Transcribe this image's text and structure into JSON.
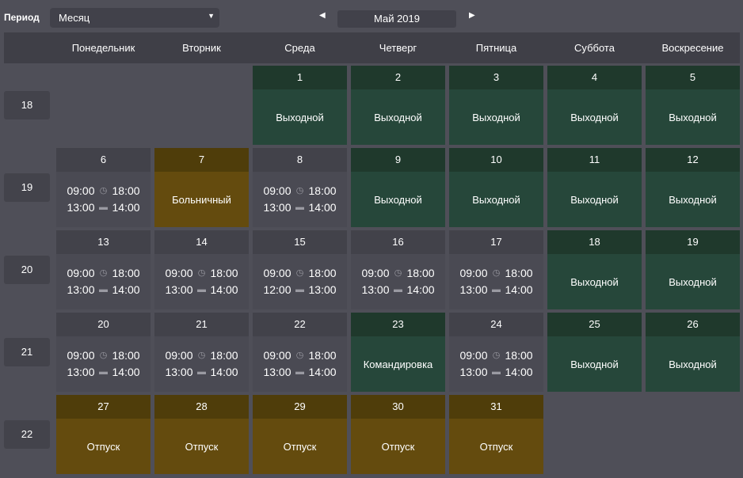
{
  "toolbar": {
    "period_label": "Период",
    "period_value": "Месяц",
    "prev_icon": "triangle-left",
    "next_icon": "triangle-right",
    "month": "Май 2019"
  },
  "weekdays": [
    "Понедельник",
    "Вторник",
    "Среда",
    "Четверг",
    "Пятница",
    "Суббота",
    "Воскресение"
  ],
  "colors": {
    "background": "#4f4f58",
    "workday": "#4a4a53",
    "day_off": "#26473a",
    "absence": "#644b0e"
  },
  "weeks": [
    {
      "number": "18",
      "days": [
        null,
        null,
        {
          "day": "1",
          "type": "off",
          "label": "Выходной"
        },
        {
          "day": "2",
          "type": "off",
          "label": "Выходной"
        },
        {
          "day": "3",
          "type": "off",
          "label": "Выходной"
        },
        {
          "day": "4",
          "type": "off",
          "label": "Выходной"
        },
        {
          "day": "5",
          "type": "off",
          "label": "Выходной"
        }
      ]
    },
    {
      "number": "19",
      "days": [
        {
          "day": "6",
          "type": "work",
          "start": "09:00",
          "end": "18:00",
          "break_start": "13:00",
          "break_end": "14:00"
        },
        {
          "day": "7",
          "type": "sick",
          "label": "Больничный"
        },
        {
          "day": "8",
          "type": "work",
          "start": "09:00",
          "end": "18:00",
          "break_start": "13:00",
          "break_end": "14:00"
        },
        {
          "day": "9",
          "type": "off",
          "label": "Выходной"
        },
        {
          "day": "10",
          "type": "off",
          "label": "Выходной"
        },
        {
          "day": "11",
          "type": "off",
          "label": "Выходной"
        },
        {
          "day": "12",
          "type": "off",
          "label": "Выходной"
        }
      ]
    },
    {
      "number": "20",
      "days": [
        {
          "day": "13",
          "type": "work",
          "start": "09:00",
          "end": "18:00",
          "break_start": "13:00",
          "break_end": "14:00"
        },
        {
          "day": "14",
          "type": "work",
          "start": "09:00",
          "end": "18:00",
          "break_start": "13:00",
          "break_end": "14:00"
        },
        {
          "day": "15",
          "type": "work",
          "start": "09:00",
          "end": "18:00",
          "break_start": "12:00",
          "break_end": "13:00"
        },
        {
          "day": "16",
          "type": "work",
          "start": "09:00",
          "end": "18:00",
          "break_start": "13:00",
          "break_end": "14:00"
        },
        {
          "day": "17",
          "type": "work",
          "start": "09:00",
          "end": "18:00",
          "break_start": "13:00",
          "break_end": "14:00"
        },
        {
          "day": "18",
          "type": "off",
          "label": "Выходной"
        },
        {
          "day": "19",
          "type": "off",
          "label": "Выходной"
        }
      ]
    },
    {
      "number": "21",
      "days": [
        {
          "day": "20",
          "type": "work",
          "start": "09:00",
          "end": "18:00",
          "break_start": "13:00",
          "break_end": "14:00"
        },
        {
          "day": "21",
          "type": "work",
          "start": "09:00",
          "end": "18:00",
          "break_start": "13:00",
          "break_end": "14:00"
        },
        {
          "day": "22",
          "type": "work",
          "start": "09:00",
          "end": "18:00",
          "break_start": "13:00",
          "break_end": "14:00"
        },
        {
          "day": "23",
          "type": "off",
          "label": "Командировка"
        },
        {
          "day": "24",
          "type": "work",
          "start": "09:00",
          "end": "18:00",
          "break_start": "13:00",
          "break_end": "14:00"
        },
        {
          "day": "25",
          "type": "off",
          "label": "Выходной"
        },
        {
          "day": "26",
          "type": "off",
          "label": "Выходной"
        }
      ]
    },
    {
      "number": "22",
      "days": [
        {
          "day": "27",
          "type": "sick",
          "label": "Отпуск"
        },
        {
          "day": "28",
          "type": "sick",
          "label": "Отпуск"
        },
        {
          "day": "29",
          "type": "sick",
          "label": "Отпуск"
        },
        {
          "day": "30",
          "type": "sick",
          "label": "Отпуск"
        },
        {
          "day": "31",
          "type": "sick",
          "label": "Отпуск"
        },
        null,
        null
      ]
    }
  ]
}
